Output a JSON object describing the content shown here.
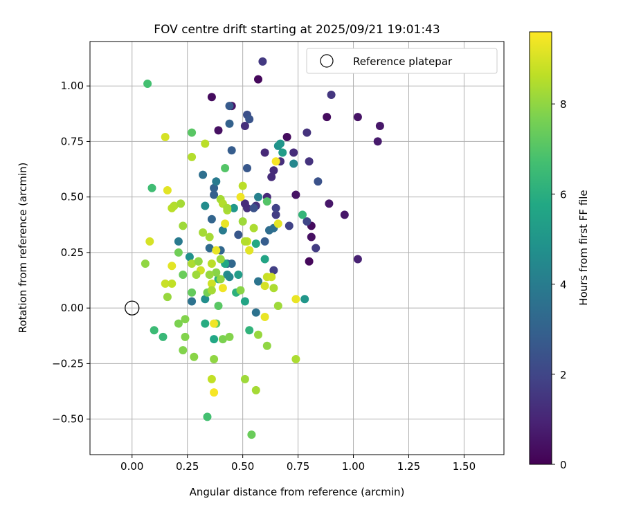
{
  "chart_data": {
    "type": "scatter",
    "title": "FOV centre drift starting at 2025/09/21 19:01:43",
    "xlabel": "Angular distance from reference (arcmin)",
    "ylabel": "Rotation from reference (arcmin)",
    "xlim": [
      -0.19,
      1.68
    ],
    "ylim": [
      -0.66,
      1.2
    ],
    "xticks": [
      0.0,
      0.25,
      0.5,
      0.75,
      1.0,
      1.25,
      1.5
    ],
    "xtick_labels": [
      "0.00",
      "0.25",
      "0.50",
      "0.75",
      "1.00",
      "1.25",
      "1.50"
    ],
    "yticks": [
      -0.5,
      -0.25,
      0.0,
      0.25,
      0.5,
      0.75,
      1.0
    ],
    "ytick_labels": [
      "−0.50",
      "−0.25",
      "0.00",
      "0.25",
      "0.50",
      "0.75",
      "1.00"
    ],
    "grid": true,
    "legend": {
      "location": "upper right",
      "label": "Reference platepar"
    },
    "reference": {
      "x": 0.0,
      "y": 0.0
    },
    "colorbar": {
      "label": "Hours from first FF file",
      "colormap": "viridis",
      "range": [
        0,
        9.6
      ],
      "ticks": [
        0,
        2,
        4,
        6,
        8
      ],
      "tick_labels": [
        "0",
        "2",
        "4",
        "6",
        "8"
      ]
    },
    "points": [
      [
        0.57,
        1.03,
        0.2
      ],
      [
        0.36,
        0.95,
        0.3
      ],
      [
        0.45,
        0.91,
        0.5
      ],
      [
        0.39,
        0.8,
        0.4
      ],
      [
        0.7,
        0.77,
        0.3
      ],
      [
        0.88,
        0.86,
        0.3
      ],
      [
        1.02,
        0.86,
        0.5
      ],
      [
        1.12,
        0.82,
        0.6
      ],
      [
        1.11,
        0.75,
        0.7
      ],
      [
        0.74,
        0.51,
        0.5
      ],
      [
        0.81,
        0.37,
        0.3
      ],
      [
        0.81,
        0.32,
        0.4
      ],
      [
        0.8,
        0.21,
        0.2
      ],
      [
        0.89,
        0.47,
        0.6
      ],
      [
        0.96,
        0.42,
        0.6
      ],
      [
        1.02,
        0.22,
        0.9
      ],
      [
        0.59,
        1.11,
        1.6
      ],
      [
        0.9,
        0.96,
        1.5
      ],
      [
        0.51,
        0.82,
        1.3
      ],
      [
        0.79,
        0.79,
        1.4
      ],
      [
        0.6,
        0.7,
        1.1
      ],
      [
        0.73,
        0.7,
        1.2
      ],
      [
        0.67,
        0.66,
        1.3
      ],
      [
        0.63,
        0.59,
        1.2
      ],
      [
        0.64,
        0.62,
        1.2
      ],
      [
        0.8,
        0.66,
        1.4
      ],
      [
        0.61,
        0.5,
        1.1
      ],
      [
        0.56,
        0.46,
        1.4
      ],
      [
        0.52,
        0.45,
        1.3
      ],
      [
        0.51,
        0.47,
        1.2
      ],
      [
        0.65,
        0.42,
        1.7
      ],
      [
        0.65,
        0.45,
        1.9
      ],
      [
        0.83,
        0.27,
        1.7
      ],
      [
        0.84,
        0.57,
        2.4
      ],
      [
        0.79,
        0.39,
        2.0
      ],
      [
        0.64,
        0.17,
        1.8
      ],
      [
        0.71,
        0.37,
        1.9
      ],
      [
        0.52,
        0.87,
        2.3
      ],
      [
        0.53,
        0.85,
        2.5
      ],
      [
        0.44,
        0.91,
        2.7
      ],
      [
        0.52,
        0.63,
        2.6
      ],
      [
        0.45,
        0.71,
        2.8
      ],
      [
        0.44,
        0.83,
        3.0
      ],
      [
        0.55,
        0.45,
        2.4
      ],
      [
        0.48,
        0.33,
        2.6
      ],
      [
        0.6,
        0.3,
        2.8
      ],
      [
        0.37,
        0.54,
        3.0
      ],
      [
        0.37,
        0.51,
        2.9
      ],
      [
        0.36,
        0.4,
        3.1
      ],
      [
        0.4,
        0.26,
        3.2
      ],
      [
        0.32,
        0.6,
        3.5
      ],
      [
        0.35,
        0.27,
        3.3
      ],
      [
        0.43,
        0.2,
        3.4
      ],
      [
        0.45,
        0.2,
        3.2
      ],
      [
        0.57,
        0.12,
        3.7
      ],
      [
        0.56,
        -0.02,
        3.6
      ],
      [
        0.62,
        0.35,
        3.4
      ],
      [
        0.64,
        0.36,
        3.5
      ],
      [
        0.27,
        0.03,
        3.6
      ],
      [
        0.21,
        0.3,
        3.9
      ],
      [
        0.41,
        0.35,
        4.0
      ],
      [
        0.38,
        0.57,
        3.9
      ],
      [
        0.73,
        0.65,
        4.4
      ],
      [
        0.66,
        0.73,
        4.8
      ],
      [
        0.33,
        0.46,
        4.6
      ],
      [
        0.57,
        0.5,
        4.2
      ],
      [
        0.43,
        0.15,
        4.6
      ],
      [
        0.26,
        0.23,
        4.8
      ],
      [
        0.33,
        0.04,
        4.7
      ],
      [
        0.44,
        0.14,
        4.4
      ],
      [
        0.78,
        0.04,
        5.0
      ],
      [
        0.68,
        0.7,
        5.3
      ],
      [
        0.67,
        0.74,
        5.0
      ],
      [
        0.48,
        0.15,
        5.3
      ],
      [
        0.46,
        0.45,
        5.1
      ],
      [
        0.51,
        0.03,
        5.6
      ],
      [
        0.42,
        0.2,
        5.7
      ],
      [
        0.6,
        0.22,
        5.6
      ],
      [
        0.56,
        0.29,
        5.8
      ],
      [
        0.33,
        -0.07,
        5.9
      ],
      [
        0.37,
        -0.14,
        5.7
      ],
      [
        0.39,
        0.13,
        6.1
      ],
      [
        0.47,
        0.07,
        6.1
      ],
      [
        0.53,
        -0.1,
        6.2
      ],
      [
        0.77,
        0.42,
        6.3
      ],
      [
        0.07,
        1.01,
        6.7
      ],
      [
        0.09,
        0.54,
        6.6
      ],
      [
        0.14,
        -0.13,
        6.4
      ],
      [
        0.1,
        -0.1,
        6.5
      ],
      [
        0.34,
        -0.49,
        6.7
      ],
      [
        0.27,
        0.79,
        7.1
      ],
      [
        0.42,
        0.63,
        7.0
      ],
      [
        0.61,
        0.48,
        7.0
      ],
      [
        0.27,
        0.07,
        7.3
      ],
      [
        0.38,
        -0.07,
        7.2
      ],
      [
        0.39,
        0.01,
        7.1
      ],
      [
        0.54,
        -0.57,
        7.4
      ],
      [
        0.23,
        0.15,
        7.4
      ],
      [
        0.21,
        0.25,
        7.5
      ],
      [
        0.34,
        0.07,
        7.6
      ],
      [
        0.41,
        -0.14,
        7.7
      ],
      [
        0.44,
        -0.13,
        7.8
      ],
      [
        0.24,
        -0.13,
        7.8
      ],
      [
        0.21,
        -0.07,
        7.7
      ],
      [
        0.23,
        -0.19,
        7.8
      ],
      [
        0.24,
        -0.05,
        7.8
      ],
      [
        0.28,
        -0.22,
        7.9
      ],
      [
        0.37,
        -0.23,
        8.0
      ],
      [
        0.06,
        0.2,
        8.0
      ],
      [
        0.16,
        0.05,
        8.1
      ],
      [
        0.23,
        0.37,
        8.2
      ],
      [
        0.27,
        0.68,
        8.5
      ],
      [
        0.33,
        0.74,
        8.6
      ],
      [
        0.4,
        0.49,
        8.3
      ],
      [
        0.41,
        0.47,
        8.5
      ],
      [
        0.43,
        0.44,
        8.4
      ],
      [
        0.43,
        0.45,
        8.3
      ],
      [
        0.5,
        0.39,
        8.2
      ],
      [
        0.52,
        0.3,
        8.7
      ],
      [
        0.53,
        0.26,
        8.9
      ],
      [
        0.51,
        0.3,
        8.5
      ],
      [
        0.55,
        0.36,
        8.4
      ],
      [
        0.61,
        0.14,
        8.8
      ],
      [
        0.63,
        0.14,
        8.9
      ],
      [
        0.64,
        0.09,
        8.4
      ],
      [
        0.66,
        0.01,
        8.2
      ],
      [
        0.57,
        -0.12,
        8.1
      ],
      [
        0.61,
        -0.17,
        8.0
      ],
      [
        0.56,
        -0.37,
        8.3
      ],
      [
        0.51,
        -0.32,
        8.2
      ],
      [
        0.36,
        -0.32,
        8.7
      ],
      [
        0.74,
        -0.23,
        8.4
      ],
      [
        0.37,
        -0.07,
        9.4
      ],
      [
        0.37,
        -0.38,
        9.5
      ],
      [
        0.16,
        0.53,
        9.2
      ],
      [
        0.15,
        0.77,
        9.0
      ],
      [
        0.08,
        0.3,
        9.0
      ],
      [
        0.18,
        0.19,
        9.2
      ],
      [
        0.18,
        0.45,
        8.6
      ],
      [
        0.19,
        0.46,
        8.5
      ],
      [
        0.22,
        0.47,
        8.3
      ],
      [
        0.3,
        0.21,
        9.3
      ],
      [
        0.3,
        0.21,
        8.7
      ],
      [
        0.31,
        0.17,
        8.9
      ],
      [
        0.35,
        0.32,
        8.3
      ],
      [
        0.36,
        0.11,
        8.9
      ],
      [
        0.38,
        0.26,
        9.3
      ],
      [
        0.41,
        0.09,
        9.4
      ],
      [
        0.42,
        0.38,
        9.3
      ],
      [
        0.49,
        0.5,
        9.4
      ],
      [
        0.53,
        0.26,
        9.2
      ],
      [
        0.6,
        -0.04,
        9.3
      ],
      [
        0.6,
        0.1,
        9.0
      ],
      [
        0.65,
        0.66,
        9.5
      ],
      [
        0.66,
        0.38,
        9.2
      ],
      [
        0.74,
        0.04,
        9.3
      ],
      [
        0.4,
        0.22,
        8.1
      ],
      [
        0.36,
        0.2,
        8.6
      ],
      [
        0.32,
        0.34,
        8.3
      ],
      [
        0.27,
        0.2,
        8.4
      ],
      [
        0.29,
        0.15,
        8.2
      ],
      [
        0.3,
        0.21,
        8.0
      ],
      [
        0.38,
        0.16,
        7.9
      ],
      [
        0.4,
        0.13,
        8.0
      ],
      [
        0.49,
        0.08,
        7.9
      ],
      [
        0.5,
        0.55,
        8.6
      ],
      [
        0.35,
        0.15,
        8.1
      ],
      [
        0.36,
        0.08,
        8.3
      ],
      [
        0.15,
        0.11,
        8.8
      ],
      [
        0.18,
        0.11,
        8.7
      ]
    ]
  }
}
